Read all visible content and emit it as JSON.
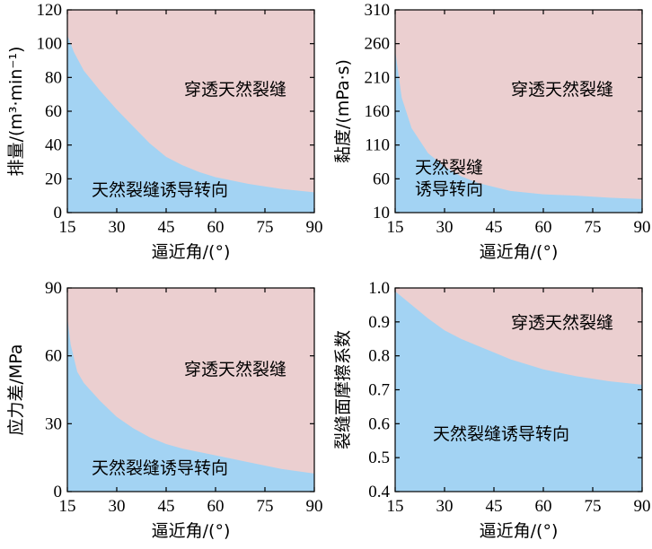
{
  "colors": {
    "penetrate": "#ebcfd0",
    "divert": "#a3d3f3"
  },
  "chart_data": [
    {
      "type": "area",
      "xlabel": "逼近角/(°)",
      "ylabel": "排量/(m³·min⁻¹)",
      "xlim": [
        15,
        90
      ],
      "ylim": [
        0,
        120
      ],
      "xticks": [
        15,
        30,
        45,
        60,
        75,
        90
      ],
      "yticks": [
        0,
        20,
        40,
        60,
        80,
        100,
        120
      ],
      "boundary": {
        "x": [
          15,
          17,
          20,
          25,
          30,
          35,
          40,
          45,
          50,
          55,
          60,
          70,
          80,
          90
        ],
        "y": [
          105,
          95,
          84,
          72,
          61,
          51,
          41,
          33,
          28,
          24,
          21,
          17,
          14,
          12
        ]
      },
      "regions": [
        {
          "label": "穿透天然裂缝",
          "position": "above"
        },
        {
          "label": "天然裂缝诱导转向",
          "position": "below"
        }
      ]
    },
    {
      "type": "area",
      "xlabel": "逼近角/(°)",
      "ylabel": "黏度/(mPa·s)",
      "xlim": [
        15,
        90
      ],
      "ylim": [
        10,
        310
      ],
      "xticks": [
        15,
        30,
        45,
        60,
        75,
        90
      ],
      "yticks": [
        10,
        60,
        110,
        160,
        210,
        260,
        310
      ],
      "boundary": {
        "x": [
          15,
          17,
          20,
          25,
          30,
          35,
          40,
          45,
          50,
          60,
          70,
          80,
          90
        ],
        "y": [
          250,
          180,
          135,
          98,
          78,
          64,
          54,
          48,
          42,
          37,
          35,
          32,
          30
        ]
      },
      "regions": [
        {
          "label": "穿透天然裂缝",
          "position": "above"
        },
        {
          "label": "天然裂缝诱导转向",
          "position": "below",
          "lines": [
            "天然裂缝",
            "诱导转向"
          ]
        }
      ]
    },
    {
      "type": "area",
      "xlabel": "逼近角/(°)",
      "ylabel": "应力差/MPa",
      "xlim": [
        15,
        90
      ],
      "ylim": [
        0,
        90
      ],
      "xticks": [
        15,
        30,
        45,
        60,
        75,
        90
      ],
      "yticks": [
        0,
        30,
        60,
        90
      ],
      "boundary": {
        "x": [
          15,
          16,
          18,
          20,
          25,
          30,
          35,
          40,
          45,
          50,
          60,
          70,
          80,
          90
        ],
        "y": [
          77,
          65,
          53,
          48,
          40,
          33,
          28,
          24,
          21,
          19,
          16,
          13,
          10,
          8
        ]
      },
      "regions": [
        {
          "label": "穿透天然裂缝",
          "position": "above"
        },
        {
          "label": "天然裂缝诱导转向",
          "position": "below"
        }
      ]
    },
    {
      "type": "area",
      "xlabel": "逼近角/(°)",
      "ylabel": "裂缝面摩擦系数",
      "xlim": [
        15,
        90
      ],
      "ylim": [
        0.4,
        1.0
      ],
      "xticks": [
        15,
        30,
        45,
        60,
        75,
        90
      ],
      "yticks": [
        0.4,
        0.5,
        0.6,
        0.7,
        0.8,
        0.9,
        1.0
      ],
      "boundary": {
        "x": [
          15,
          20,
          25,
          30,
          35,
          40,
          45,
          50,
          55,
          60,
          70,
          80,
          90
        ],
        "y": [
          0.99,
          0.95,
          0.91,
          0.875,
          0.85,
          0.83,
          0.81,
          0.79,
          0.775,
          0.76,
          0.74,
          0.725,
          0.715
        ]
      },
      "regions": [
        {
          "label": "穿透天然裂缝",
          "position": "above"
        },
        {
          "label": "天然裂缝诱导转向",
          "position": "below"
        }
      ]
    }
  ]
}
